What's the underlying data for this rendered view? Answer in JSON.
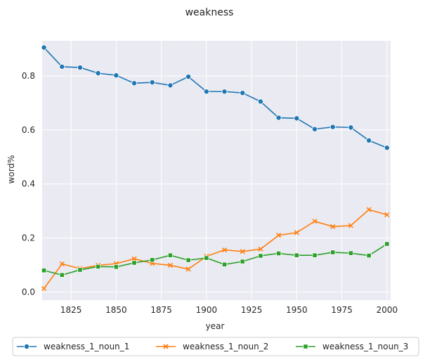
{
  "chart_data": {
    "type": "line",
    "title": "weakness",
    "xlabel": "year",
    "ylabel": "word%",
    "xlim": [
      1809,
      2002
    ],
    "ylim": [
      -0.03,
      0.93
    ],
    "xticks": [
      1825,
      1850,
      1875,
      1900,
      1925,
      1950,
      1975,
      2000
    ],
    "yticks": [
      0.0,
      0.2,
      0.4,
      0.6,
      0.8
    ],
    "grid": true,
    "legend_position": "bottom",
    "x": [
      1810,
      1820,
      1830,
      1840,
      1850,
      1860,
      1870,
      1880,
      1890,
      1900,
      1910,
      1920,
      1930,
      1940,
      1950,
      1960,
      1970,
      1980,
      1990,
      2000
    ],
    "series": [
      {
        "name": "weakness_1_noun_1",
        "color": "#1f77b4",
        "marker": "circle",
        "values": [
          0.905,
          0.834,
          0.831,
          0.81,
          0.802,
          0.773,
          0.776,
          0.765,
          0.797,
          0.742,
          0.742,
          0.737,
          0.705,
          0.645,
          0.643,
          0.603,
          0.611,
          0.609,
          0.561,
          0.534
        ]
      },
      {
        "name": "weakness_1_noun_2",
        "color": "#ff7f0e",
        "marker": "x",
        "values": [
          0.013,
          0.104,
          0.087,
          0.099,
          0.105,
          0.123,
          0.106,
          0.099,
          0.085,
          0.132,
          0.156,
          0.15,
          0.159,
          0.21,
          0.22,
          0.262,
          0.242,
          0.246,
          0.305,
          0.286
        ]
      },
      {
        "name": "weakness_1_noun_3",
        "color": "#2ca02c",
        "marker": "square",
        "values": [
          0.08,
          0.063,
          0.082,
          0.094,
          0.093,
          0.108,
          0.119,
          0.136,
          0.118,
          0.126,
          0.102,
          0.113,
          0.134,
          0.143,
          0.136,
          0.136,
          0.147,
          0.144,
          0.135,
          0.178
        ]
      }
    ]
  }
}
